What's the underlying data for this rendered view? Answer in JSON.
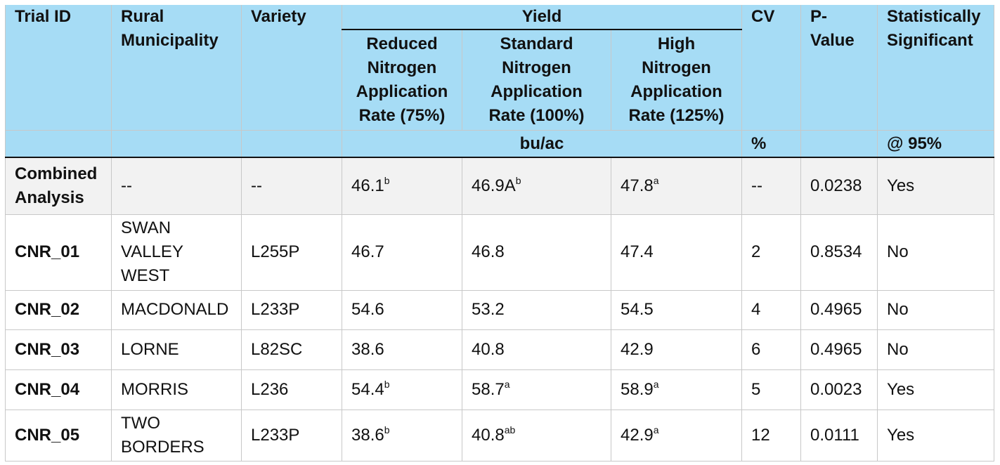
{
  "headers": {
    "trial_id": "Trial ID",
    "rural_municipality": "Rural Municipality",
    "variety": "Variety",
    "yield": "Yield",
    "cv": "CV",
    "p_value": "P-Value",
    "statistically_significant": "Statistically Significant",
    "reduced": "Reduced Nitrogen Application Rate (75%)",
    "standard": "Standard Nitrogen Application Rate (100%)",
    "high": "High Nitrogen Application Rate (125%)"
  },
  "units": {
    "yield": "bu/ac",
    "cv": "%",
    "significance": "@ 95%"
  },
  "rows": [
    {
      "trial": "Combined Analysis",
      "rm": "--",
      "variety": "--",
      "reduced": "46.1",
      "reduced_sup": "b",
      "standard": "46.9A",
      "standard_sup": "b",
      "high": "47.8",
      "high_sup": "a",
      "cv": "--",
      "p": "0.0238",
      "sig": "Yes"
    },
    {
      "trial": "CNR_01",
      "rm": "SWAN VALLEY WEST",
      "variety": "L255P",
      "reduced": "46.7",
      "reduced_sup": "",
      "standard": "46.8",
      "standard_sup": "",
      "high": "47.4",
      "high_sup": "",
      "cv": "2",
      "p": "0.8534",
      "sig": "No"
    },
    {
      "trial": "CNR_02",
      "rm": "MACDONALD",
      "variety": "L233P",
      "reduced": "54.6",
      "reduced_sup": "",
      "standard": "53.2",
      "standard_sup": "",
      "high": "54.5",
      "high_sup": "",
      "cv": "4",
      "p": "0.4965",
      "sig": "No"
    },
    {
      "trial": "CNR_03",
      "rm": "LORNE",
      "variety": "L82SC",
      "reduced": "38.6",
      "reduced_sup": "",
      "standard": "40.8",
      "standard_sup": "",
      "high": "42.9",
      "high_sup": "",
      "cv": "6",
      "p": "0.4965",
      "sig": "No"
    },
    {
      "trial": "CNR_04",
      "rm": "MORRIS",
      "variety": "L236",
      "reduced": "54.4",
      "reduced_sup": "b",
      "standard": "58.7",
      "standard_sup": "a",
      "high": "58.9",
      "high_sup": "a",
      "cv": "5",
      "p": "0.0023",
      "sig": "Yes"
    },
    {
      "trial": "CNR_05",
      "rm": "TWO BORDERS",
      "variety": "L233P",
      "reduced": "38.6",
      "reduced_sup": "b",
      "standard": "40.8",
      "standard_sup": "ab",
      "high": "42.9",
      "high_sup": "a",
      "cv": "12",
      "p": "0.0111",
      "sig": "Yes"
    }
  ]
}
